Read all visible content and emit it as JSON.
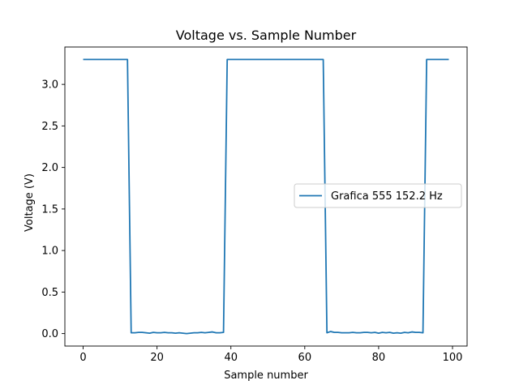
{
  "chart_data": {
    "type": "line",
    "title": "Voltage vs. Sample Number",
    "xlabel": "Sample number",
    "ylabel": "Voltage (V)",
    "xlim": [
      -4.95,
      103.95
    ],
    "ylim": [
      -0.15,
      3.45
    ],
    "xticks": [
      0,
      20,
      40,
      60,
      80,
      100
    ],
    "yticks": [
      0.0,
      0.5,
      1.0,
      1.5,
      2.0,
      2.5,
      3.0
    ],
    "xtick_labels": [
      "0",
      "20",
      "40",
      "60",
      "80",
      "100"
    ],
    "ytick_labels": [
      "0.0",
      "0.5",
      "1.0",
      "1.5",
      "2.0",
      "2.5",
      "3.0"
    ],
    "grid": false,
    "legend_position": "center-right",
    "series": [
      {
        "name": "Grafica 555 152.2 Hz",
        "color": "#1f77b4",
        "x": [
          0,
          1,
          2,
          3,
          4,
          5,
          6,
          7,
          8,
          9,
          10,
          11,
          12,
          13,
          14,
          15,
          16,
          17,
          18,
          19,
          20,
          21,
          22,
          23,
          24,
          25,
          26,
          27,
          28,
          29,
          30,
          31,
          32,
          33,
          34,
          35,
          36,
          37,
          38,
          39,
          40,
          41,
          42,
          43,
          44,
          45,
          46,
          47,
          48,
          49,
          50,
          51,
          52,
          53,
          54,
          55,
          56,
          57,
          58,
          59,
          60,
          61,
          62,
          63,
          64,
          65,
          66,
          67,
          68,
          69,
          70,
          71,
          72,
          73,
          74,
          75,
          76,
          77,
          78,
          79,
          80,
          81,
          82,
          83,
          84,
          85,
          86,
          87,
          88,
          89,
          90,
          91,
          92,
          93,
          94,
          95,
          96,
          97,
          98,
          99
        ],
        "values": [
          3.3,
          3.3,
          3.3,
          3.3,
          3.3,
          3.3,
          3.3,
          3.3,
          3.3,
          3.3,
          3.3,
          3.3,
          3.3,
          0.01,
          0.01,
          0.015,
          0.015,
          0.01,
          0.005,
          0.015,
          0.01,
          0.01,
          0.015,
          0.01,
          0.01,
          0.005,
          0.01,
          0.005,
          0.0,
          0.005,
          0.01,
          0.01,
          0.015,
          0.01,
          0.015,
          0.02,
          0.01,
          0.01,
          0.015,
          3.3,
          3.3,
          3.3,
          3.3,
          3.3,
          3.3,
          3.3,
          3.3,
          3.3,
          3.3,
          3.3,
          3.3,
          3.3,
          3.3,
          3.3,
          3.3,
          3.3,
          3.3,
          3.3,
          3.3,
          3.3,
          3.3,
          3.3,
          3.3,
          3.3,
          3.3,
          3.3,
          0.01,
          0.025,
          0.015,
          0.015,
          0.01,
          0.01,
          0.01,
          0.015,
          0.01,
          0.01,
          0.015,
          0.015,
          0.01,
          0.015,
          0.005,
          0.015,
          0.01,
          0.015,
          0.005,
          0.01,
          0.005,
          0.015,
          0.01,
          0.02,
          0.015,
          0.015,
          0.01,
          3.3,
          3.3,
          3.3,
          3.3,
          3.3,
          3.3,
          3.3
        ]
      }
    ]
  }
}
